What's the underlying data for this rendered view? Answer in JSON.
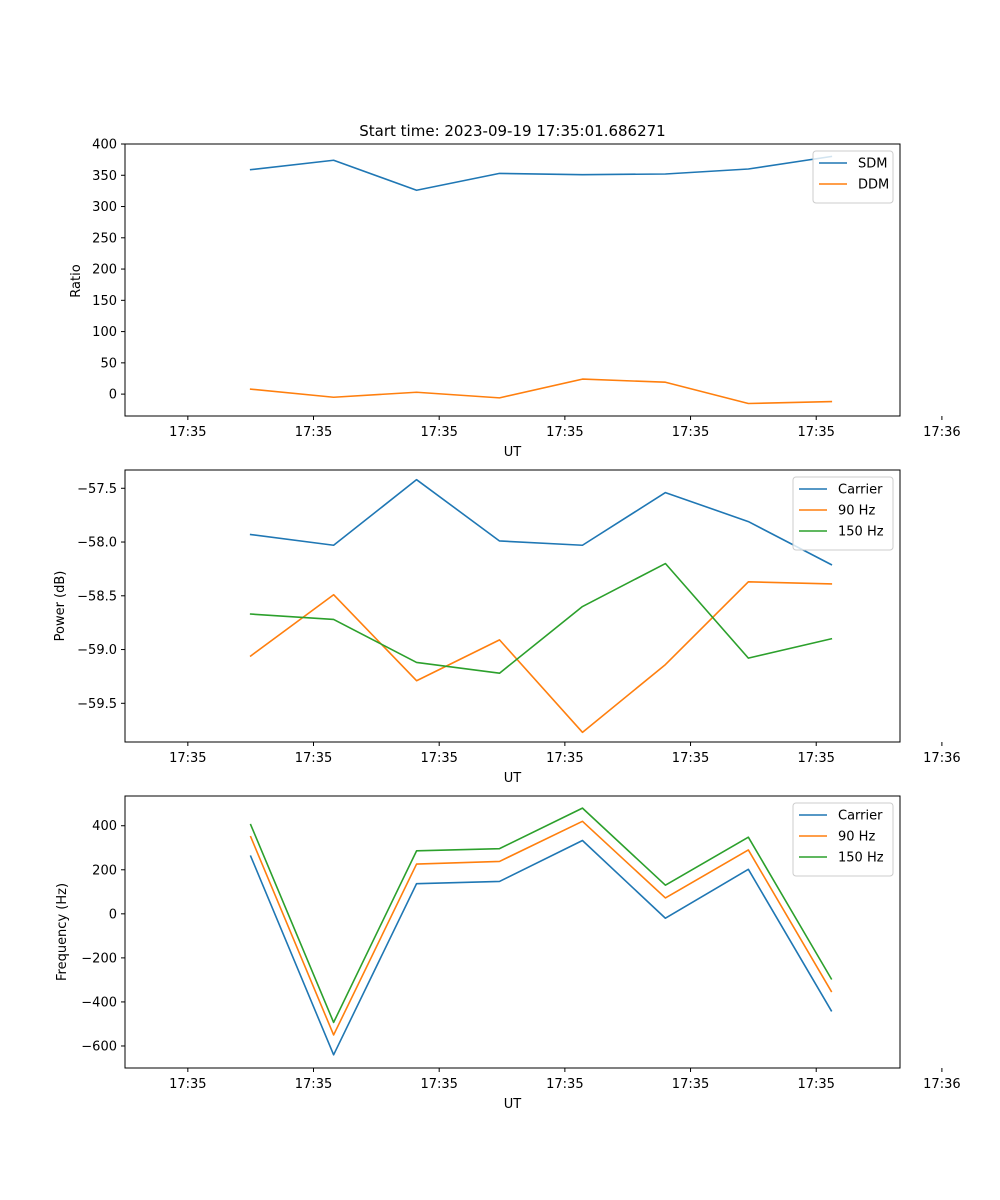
{
  "chart_data": [
    {
      "type": "line",
      "title": "Start time: 2023-09-19 17:35:01.686271",
      "xlabel": "UT",
      "ylabel": "Ratio",
      "ylim": [
        -35,
        400
      ],
      "yticks": [
        0,
        50,
        100,
        150,
        200,
        250,
        300,
        350,
        400
      ],
      "xlim": [
        -0.75,
        8.5
      ],
      "xticks": [
        0,
        1.5,
        3,
        4.5,
        6,
        7.5,
        9
      ],
      "xtick_labels": [
        "17:35",
        "17:35",
        "17:35",
        "17:35",
        "17:35",
        "17:35",
        "17:36"
      ],
      "x": [
        0.75,
        1.74,
        2.73,
        3.72,
        4.71,
        5.7,
        6.69,
        7.68
      ],
      "legend_loc": "upper-right",
      "series": [
        {
          "name": "SDM",
          "color": "#1f77b4",
          "values": [
            359,
            374,
            326,
            353,
            351,
            352,
            360,
            380
          ]
        },
        {
          "name": "DDM",
          "color": "#ff7f0e",
          "values": [
            8,
            -5,
            3,
            -6,
            24,
            19,
            -15,
            -12
          ]
        }
      ]
    },
    {
      "type": "line",
      "title": "",
      "xlabel": "UT",
      "ylabel": "Power (dB)",
      "ylim": [
        -59.86,
        -57.33
      ],
      "yticks": [
        -59.5,
        -59.0,
        -58.5,
        -58.0,
        -57.5
      ],
      "ytick_labels": [
        "−59.5",
        "−59.0",
        "−58.5",
        "−58.0",
        "−57.5"
      ],
      "xlim": [
        -0.75,
        8.5
      ],
      "xticks": [
        0,
        1.5,
        3,
        4.5,
        6,
        7.5,
        9
      ],
      "xtick_labels": [
        "17:35",
        "17:35",
        "17:35",
        "17:35",
        "17:35",
        "17:35",
        "17:36"
      ],
      "x": [
        0.75,
        1.74,
        2.73,
        3.72,
        4.71,
        5.7,
        6.69,
        7.68
      ],
      "legend_loc": "upper-right",
      "series": [
        {
          "name": "Carrier",
          "color": "#1f77b4",
          "values": [
            -57.93,
            -58.03,
            -57.42,
            -57.99,
            -58.03,
            -57.54,
            -57.81,
            -58.21
          ]
        },
        {
          "name": "90 Hz",
          "color": "#ff7f0e",
          "values": [
            -59.06,
            -58.49,
            -59.29,
            -58.91,
            -59.77,
            -59.14,
            -58.37,
            -58.39
          ]
        },
        {
          "name": "150 Hz",
          "color": "#2ca02c",
          "values": [
            -58.67,
            -58.72,
            -59.12,
            -59.22,
            -58.6,
            -58.2,
            -59.08,
            -58.9
          ]
        }
      ]
    },
    {
      "type": "line",
      "title": "",
      "xlabel": "UT",
      "ylabel": "Frequency (Hz)",
      "ylim": [
        -700,
        535
      ],
      "yticks": [
        -600,
        -400,
        -200,
        0,
        200,
        400
      ],
      "ytick_labels": [
        "−600",
        "−400",
        "−200",
        "0",
        "200",
        "400"
      ],
      "xlim": [
        -0.75,
        8.5
      ],
      "xticks": [
        0,
        1.5,
        3,
        4.5,
        6,
        7.5,
        9
      ],
      "xtick_labels": [
        "17:35",
        "17:35",
        "17:35",
        "17:35",
        "17:35",
        "17:35",
        "17:36"
      ],
      "x": [
        0.75,
        1.74,
        2.73,
        3.72,
        4.71,
        5.7,
        6.69,
        7.68
      ],
      "legend_loc": "upper-right",
      "series": [
        {
          "name": "Carrier",
          "color": "#1f77b4",
          "values": [
            262,
            -640,
            137,
            147,
            333,
            -20,
            202,
            -440
          ]
        },
        {
          "name": "90 Hz",
          "color": "#ff7f0e",
          "values": [
            350,
            -550,
            226,
            238,
            420,
            72,
            290,
            -352
          ]
        },
        {
          "name": "150 Hz",
          "color": "#2ca02c",
          "values": [
            405,
            -493,
            286,
            296,
            480,
            130,
            348,
            -295
          ]
        }
      ]
    }
  ]
}
